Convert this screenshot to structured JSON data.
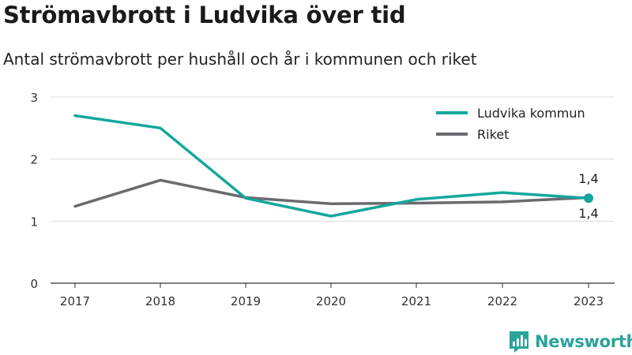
{
  "title": "Strömavbrott i Ludvika över tid",
  "subtitle": "Antal strömavbrott per hushåll och år i kommunen och riket",
  "brand": "Newsworthy",
  "chart_data": {
    "type": "line",
    "x": [
      "2017",
      "2018",
      "2019",
      "2020",
      "2021",
      "2022",
      "2023"
    ],
    "ylim": [
      0,
      3
    ],
    "yticks": [
      "0",
      "1",
      "2",
      "3"
    ],
    "grid": true,
    "legend_position": "top-right",
    "series": [
      {
        "name": "Ludvika kommun",
        "color": "#14a79d",
        "values": [
          2.7,
          2.5,
          1.37,
          1.08,
          1.35,
          1.46,
          1.37
        ]
      },
      {
        "name": "Riket",
        "color": "#6b6b6f",
        "values": [
          1.24,
          1.66,
          1.38,
          1.28,
          1.29,
          1.31,
          1.38
        ]
      }
    ],
    "end_labels": {
      "Ludvika kommun": "1,4",
      "Riket": "1,4"
    }
  }
}
